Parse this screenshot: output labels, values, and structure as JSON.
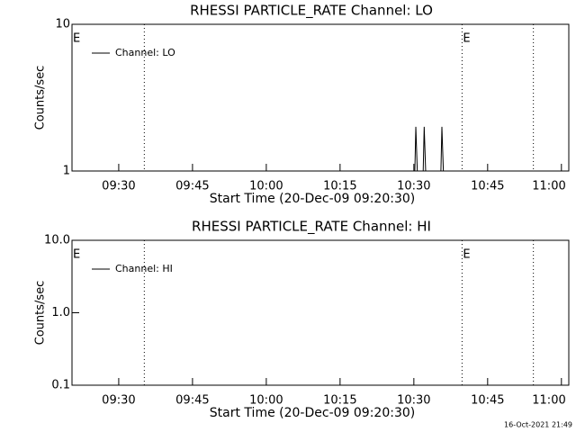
{
  "chart_data": [
    {
      "type": "line",
      "title": "RHESSI PARTICLE_RATE Channel: LO",
      "xlabel": "Start Time (20-Dec-09 09:20:30)",
      "ylabel": "Counts/sec",
      "log_y": true,
      "ylim": [
        1,
        10
      ],
      "yticks": [
        1,
        10
      ],
      "xlim": [
        560.5,
        661.5
      ],
      "xticks": [
        {
          "value": 570,
          "label": "09:30"
        },
        {
          "value": 585,
          "label": "09:45"
        },
        {
          "value": 600,
          "label": "10:00"
        },
        {
          "value": 615,
          "label": "10:15"
        },
        {
          "value": 630,
          "label": "10:30"
        },
        {
          "value": 645,
          "label": "10:45"
        },
        {
          "value": 660,
          "label": "11:00"
        }
      ],
      "markers": [
        575.2,
        639.8,
        654.3
      ],
      "marker_labels": [
        {
          "x": 560.5,
          "text": "E"
        },
        {
          "x": 639.8,
          "text": "E"
        }
      ],
      "legend": "upper left",
      "series": [
        {
          "name": "Channel: LO",
          "color": "#000000",
          "x": [
            560.5,
            630.2,
            630.4,
            630.7,
            631.9,
            632.1,
            632.4,
            635.5,
            635.7,
            636.0,
            661.5
          ],
          "values": [
            1,
            1,
            2,
            1,
            1,
            2,
            1,
            1,
            2,
            1,
            1
          ]
        }
      ]
    },
    {
      "type": "line",
      "title": "RHESSI PARTICLE_RATE Channel: HI",
      "xlabel": "Start Time (20-Dec-09 09:20:30)",
      "ylabel": "Counts/sec",
      "log_y": true,
      "ylim": [
        0.1,
        10
      ],
      "yticks": [
        {
          "value": 0.1,
          "label": "0.1"
        },
        {
          "value": 1,
          "label": "1.0"
        },
        {
          "value": 10,
          "label": "10.0"
        }
      ],
      "xlim": [
        560.5,
        661.5
      ],
      "xticks": [
        {
          "value": 570,
          "label": "09:30"
        },
        {
          "value": 585,
          "label": "09:45"
        },
        {
          "value": 600,
          "label": "10:00"
        },
        {
          "value": 615,
          "label": "10:15"
        },
        {
          "value": 630,
          "label": "10:30"
        },
        {
          "value": 645,
          "label": "10:45"
        },
        {
          "value": 660,
          "label": "11:00"
        }
      ],
      "markers": [
        575.2,
        639.8,
        654.3
      ],
      "marker_labels": [
        {
          "x": 560.5,
          "text": "E"
        },
        {
          "x": 639.8,
          "text": "E"
        }
      ],
      "legend": "upper left",
      "series": [
        {
          "name": "Channel: HI",
          "color": "#000000",
          "x": [],
          "values": []
        }
      ]
    }
  ],
  "footer": "16-Oct-2021 21:49"
}
